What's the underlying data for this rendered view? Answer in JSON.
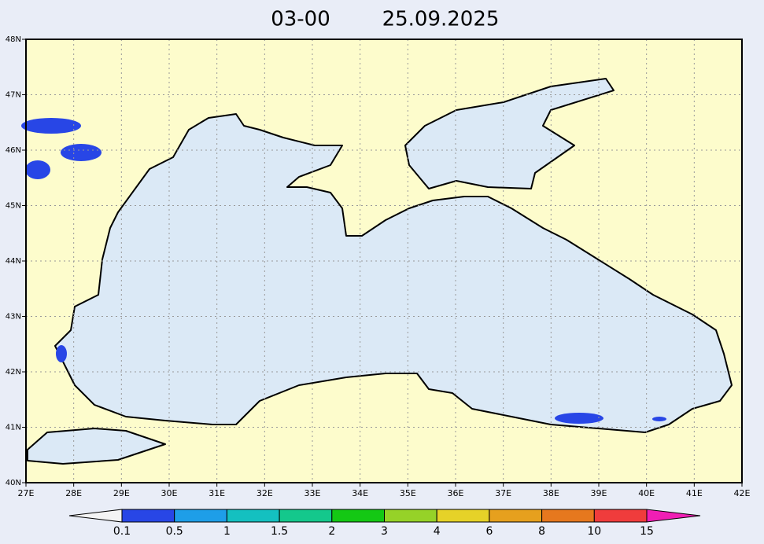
{
  "title": {
    "time": "03-00",
    "date": "25.09.2025"
  },
  "map": {
    "lon_labels": [
      "27E",
      "28E",
      "29E",
      "30E",
      "31E",
      "32E",
      "33E",
      "34E",
      "35E",
      "36E",
      "37E",
      "38E",
      "39E",
      "40E",
      "41E",
      "42E"
    ],
    "lat_labels": [
      "48N",
      "47N",
      "46N",
      "45N",
      "44N",
      "43N",
      "42N",
      "41N",
      "40N"
    ]
  },
  "legend": {
    "labels": [
      "0.1",
      "0.5",
      "1",
      "1.5",
      "2",
      "3",
      "4",
      "6",
      "8",
      "10",
      "15"
    ],
    "colors": [
      "#2846e6",
      "#1e9ee8",
      "#14c0c0",
      "#14c88c",
      "#14c814",
      "#96d228",
      "#e6d228",
      "#e6a01e",
      "#e6781e",
      "#f03c3c"
    ],
    "under_color": "#f4f4f4",
    "over_color": "#f01eb4"
  }
}
